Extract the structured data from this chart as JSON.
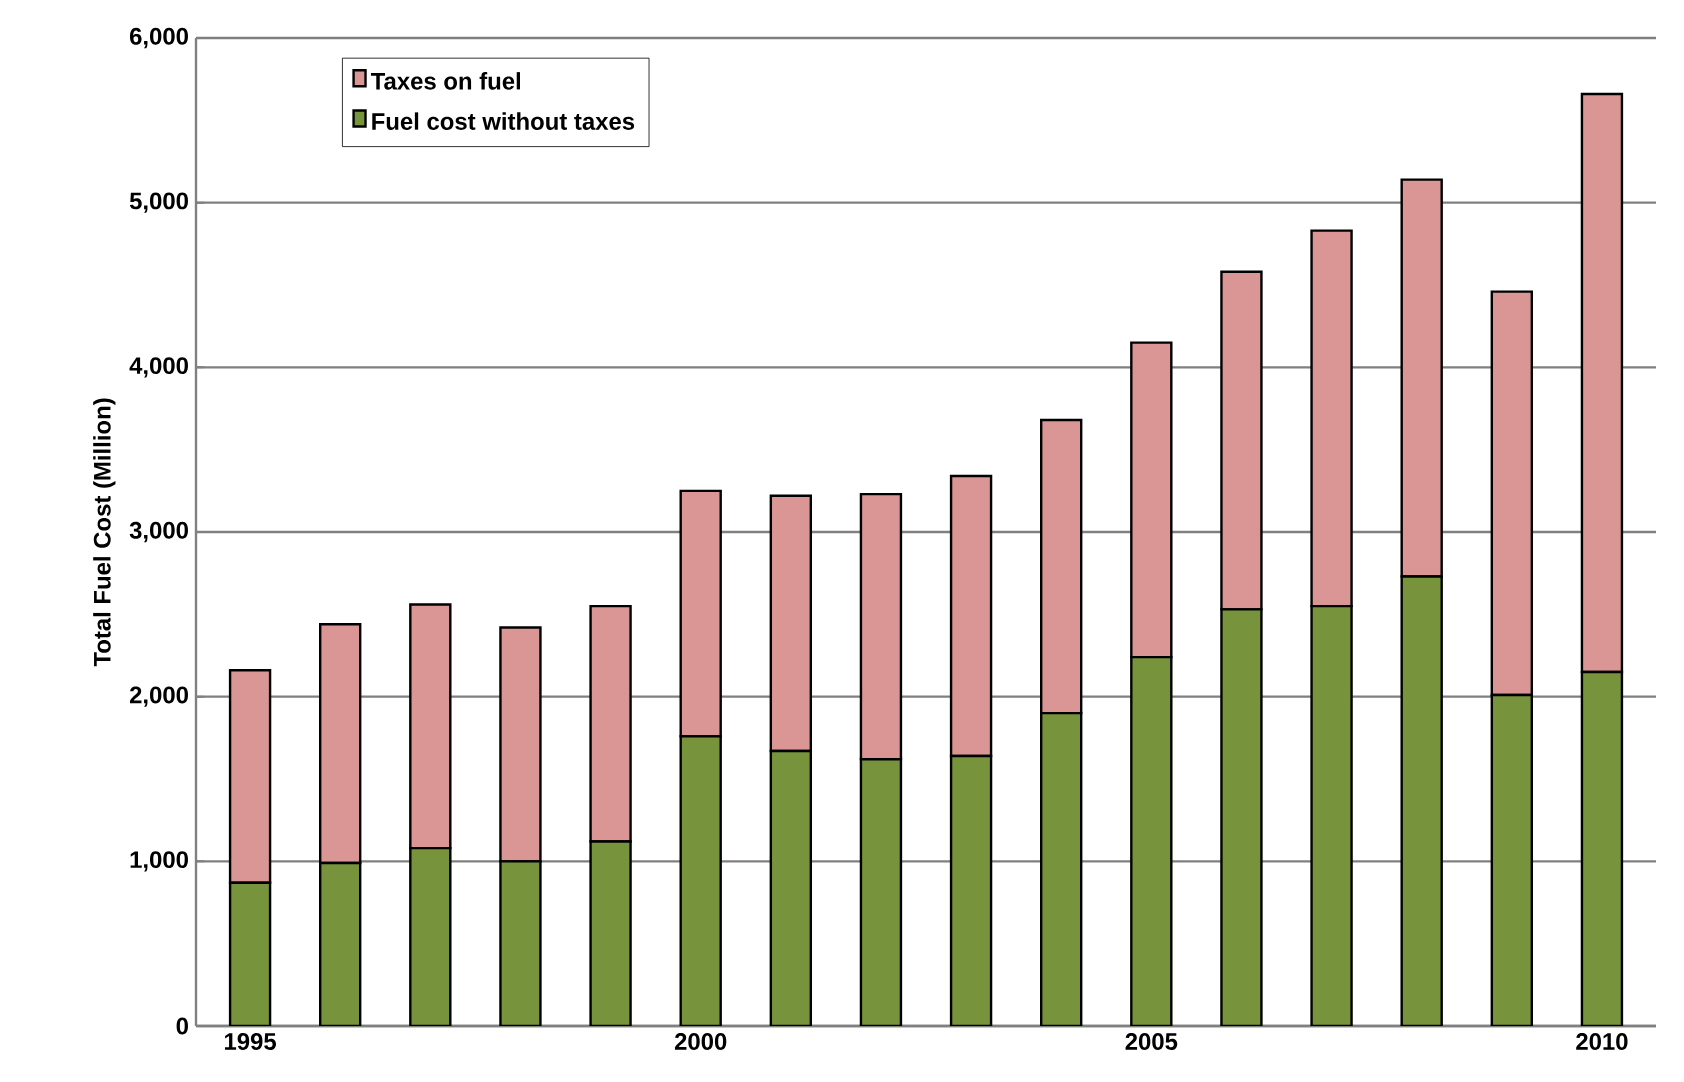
{
  "chart_data": {
    "type": "bar",
    "stacked": true,
    "ylabel": "Total Fuel Cost (Million)",
    "categories": [
      "1995",
      null,
      null,
      null,
      null,
      "2000",
      null,
      null,
      null,
      null,
      "2005",
      null,
      null,
      null,
      null,
      "2010"
    ],
    "series": [
      {
        "name": "Fuel cost without taxes",
        "color": "#77933c",
        "values": [
          870,
          990,
          1080,
          1000,
          1120,
          1760,
          1670,
          1620,
          1640,
          1900,
          2240,
          2530,
          2550,
          2730,
          2010,
          2150
        ]
      },
      {
        "name": "Taxes on fuel",
        "color": "#d99694",
        "values": [
          1290,
          1450,
          1480,
          1420,
          1430,
          1490,
          1550,
          1610,
          1700,
          1780,
          1910,
          2050,
          2280,
          2410,
          2450,
          3510
        ]
      }
    ],
    "ylim": [
      0,
      6000
    ],
    "yticks": [
      {
        "value": 0,
        "label": "0"
      },
      {
        "value": 1000,
        "label": "1,000"
      },
      {
        "value": 2000,
        "label": "2,000"
      },
      {
        "value": 3000,
        "label": "3,000"
      },
      {
        "value": 4000,
        "label": "4,000"
      },
      {
        "value": 5000,
        "label": "5,000"
      },
      {
        "value": 6000,
        "label": "6,000"
      }
    ],
    "grid": "y",
    "legend": "top left"
  }
}
